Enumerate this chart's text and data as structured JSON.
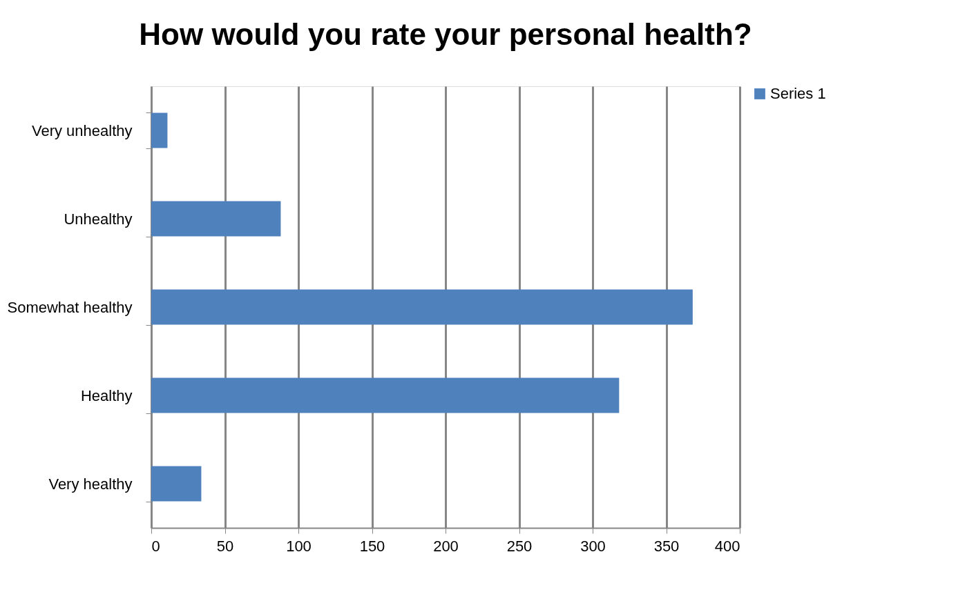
{
  "chart_data": {
    "type": "bar",
    "orientation": "horizontal",
    "title": "How would you rate your personal health?",
    "categories": [
      "Very unhealthy",
      "Unhealthy",
      "Somewhat healthy",
      "Healthy",
      "Very healthy"
    ],
    "series": [
      {
        "name": "Series 1",
        "color": "#4f81bd",
        "values": [
          11,
          88,
          368,
          318,
          34
        ]
      }
    ],
    "xlim": [
      0,
      400
    ],
    "xticks": [
      0,
      50,
      100,
      150,
      200,
      250,
      300,
      350,
      400
    ],
    "grid": "x",
    "legend": "right"
  }
}
